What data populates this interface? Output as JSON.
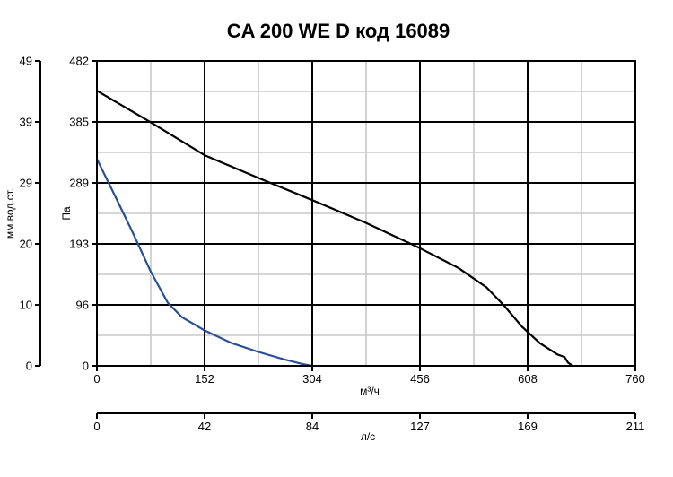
{
  "chart_data": {
    "type": "line",
    "title": "CA 200 WE D код 16089",
    "x_primary": {
      "label": "м³/ч",
      "range": [
        0,
        760
      ],
      "ticks": [
        "0",
        "152",
        "304",
        "456",
        "608",
        "760"
      ]
    },
    "x_secondary": {
      "label": "л/с",
      "range": [
        0,
        211
      ],
      "ticks": [
        "0",
        "42",
        "84",
        "127",
        "169",
        "211"
      ]
    },
    "y_primary": {
      "label": "Па",
      "range": [
        0,
        482
      ],
      "ticks": [
        "0",
        "96",
        "193",
        "289",
        "385",
        "482"
      ]
    },
    "y_secondary": {
      "label": "мм.вод.ст.",
      "range": [
        0,
        49
      ],
      "ticks": [
        "0",
        "10",
        "20",
        "29",
        "39",
        "49"
      ]
    },
    "grid": true,
    "series": [
      {
        "color": "#000000",
        "points": [
          [
            0,
            435
          ],
          [
            76,
            385
          ],
          [
            152,
            333
          ],
          [
            228,
            297
          ],
          [
            304,
            262
          ],
          [
            380,
            226
          ],
          [
            456,
            186
          ],
          [
            510,
            155
          ],
          [
            550,
            124
          ],
          [
            575,
            95
          ],
          [
            600,
            62
          ],
          [
            625,
            36
          ],
          [
            650,
            18
          ],
          [
            660,
            14
          ],
          [
            665,
            5
          ],
          [
            672,
            0
          ]
        ]
      },
      {
        "color": "#2b4e99",
        "points": [
          [
            0,
            327
          ],
          [
            25,
            270
          ],
          [
            50,
            212
          ],
          [
            76,
            149
          ],
          [
            100,
            100
          ],
          [
            120,
            77
          ],
          [
            152,
            56
          ],
          [
            190,
            36
          ],
          [
            228,
            22
          ],
          [
            265,
            10
          ],
          [
            290,
            3
          ],
          [
            304,
            0
          ]
        ]
      }
    ]
  }
}
